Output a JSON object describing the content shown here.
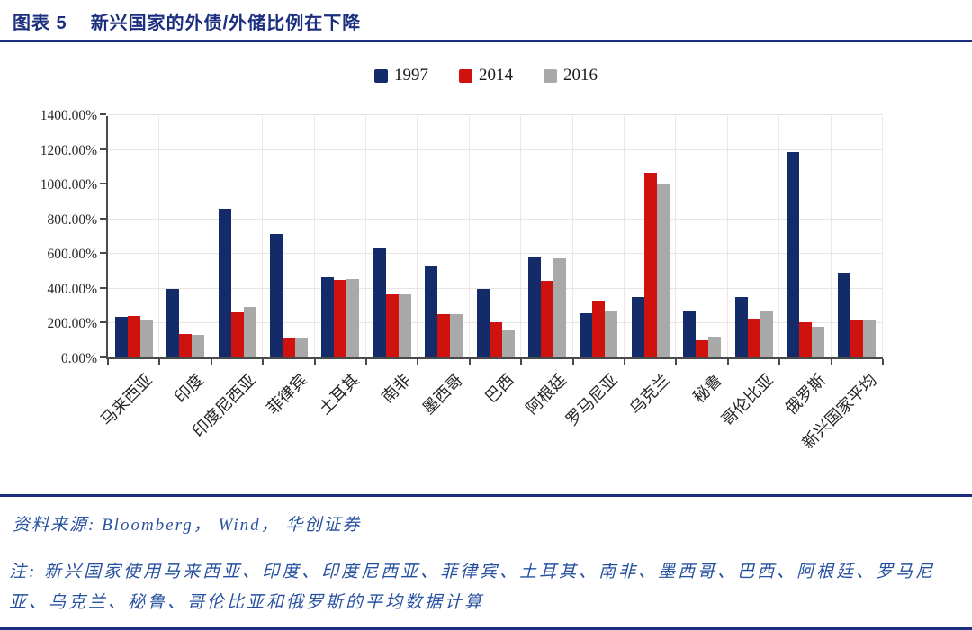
{
  "header": {
    "label": "图表 5",
    "title": "新兴国家的外债/外储比例在下降"
  },
  "chart_data": {
    "type": "bar",
    "title": "新兴国家的外债/外储比例在下降",
    "categories": [
      "马来西亚",
      "印度",
      "印度尼西亚",
      "菲律宾",
      "土耳其",
      "南非",
      "墨西哥",
      "巴西",
      "阿根廷",
      "罗马尼亚",
      "乌克兰",
      "秘鲁",
      "哥伦比亚",
      "俄罗斯",
      "新兴国家平均"
    ],
    "series": [
      {
        "name": "1997",
        "color": "#142b69",
        "values": [
          235,
          395,
          855,
          710,
          460,
          630,
          530,
          395,
          575,
          255,
          345,
          270,
          345,
          1180,
          490
        ]
      },
      {
        "name": "2014",
        "color": "#d0120f",
        "values": [
          240,
          135,
          260,
          110,
          445,
          365,
          250,
          200,
          440,
          325,
          1065,
          100,
          225,
          200,
          220
        ]
      },
      {
        "name": "2016",
        "color": "#a9a9a9",
        "values": [
          215,
          130,
          290,
          110,
          450,
          365,
          250,
          155,
          570,
          270,
          1000,
          120,
          270,
          175,
          215
        ]
      }
    ],
    "ylim": [
      0,
      1400
    ],
    "ytick_step": 200,
    "ytick_labels": [
      "0.00%",
      "200.00%",
      "400.00%",
      "600.00%",
      "800.00%",
      "1000.00%",
      "1200.00%",
      "1400.00%"
    ],
    "legend": [
      "1997",
      "2014",
      "2016"
    ],
    "legend_position": "top-center",
    "grid": true,
    "unit": "percent",
    "xlabel": "",
    "ylabel": ""
  },
  "source": {
    "label": "资料来源: Bloomberg， Wind， 华创证券"
  },
  "note": {
    "label": "注: 新兴国家使用马来西亚、印度、印度尼西亚、菲律宾、土耳其、南非、墨西哥、巴西、阿根廷、罗马尼亚、乌克兰、秘鲁、哥伦比亚和俄罗斯的平均数据计算"
  },
  "colors": {
    "accent_navy": "#1b2f7e",
    "bar_1997": "#142b69",
    "bar_2014": "#d0120f",
    "bar_2016": "#a9a9a9",
    "text_blue": "#27519f",
    "axis_gray": "#4a4a4a"
  }
}
